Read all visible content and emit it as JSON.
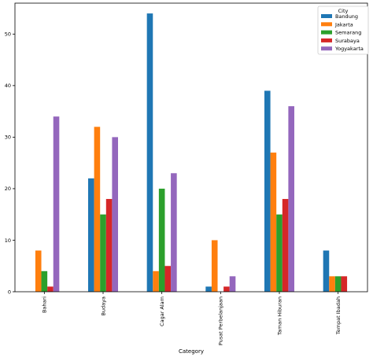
{
  "chart_data": {
    "type": "bar",
    "xlabel": "Category",
    "ylabel": "",
    "ylim": [
      0,
      56
    ],
    "yticks": [
      0,
      10,
      20,
      30,
      40,
      50
    ],
    "categories": [
      "Bahari",
      "Budaya",
      "Cagar Alam",
      "Pusat Perbelanjaan",
      "Taman Hiburan",
      "Tempat Ibadah"
    ],
    "legend": {
      "title": "City",
      "placement": "top-right"
    },
    "series": [
      {
        "name": "Bandung",
        "color": "#1f77b4",
        "values": [
          0,
          22,
          54,
          1,
          39,
          8
        ]
      },
      {
        "name": "Jakarta",
        "color": "#ff7f0e",
        "values": [
          8,
          32,
          4,
          10,
          27,
          3
        ]
      },
      {
        "name": "Semarang",
        "color": "#2ca02c",
        "values": [
          4,
          15,
          20,
          0,
          15,
          3
        ]
      },
      {
        "name": "Surabaya",
        "color": "#d62728",
        "values": [
          1,
          18,
          5,
          1,
          18,
          3
        ]
      },
      {
        "name": "Yogyakarta",
        "color": "#9467bd",
        "values": [
          34,
          30,
          23,
          3,
          36,
          0
        ]
      }
    ]
  }
}
